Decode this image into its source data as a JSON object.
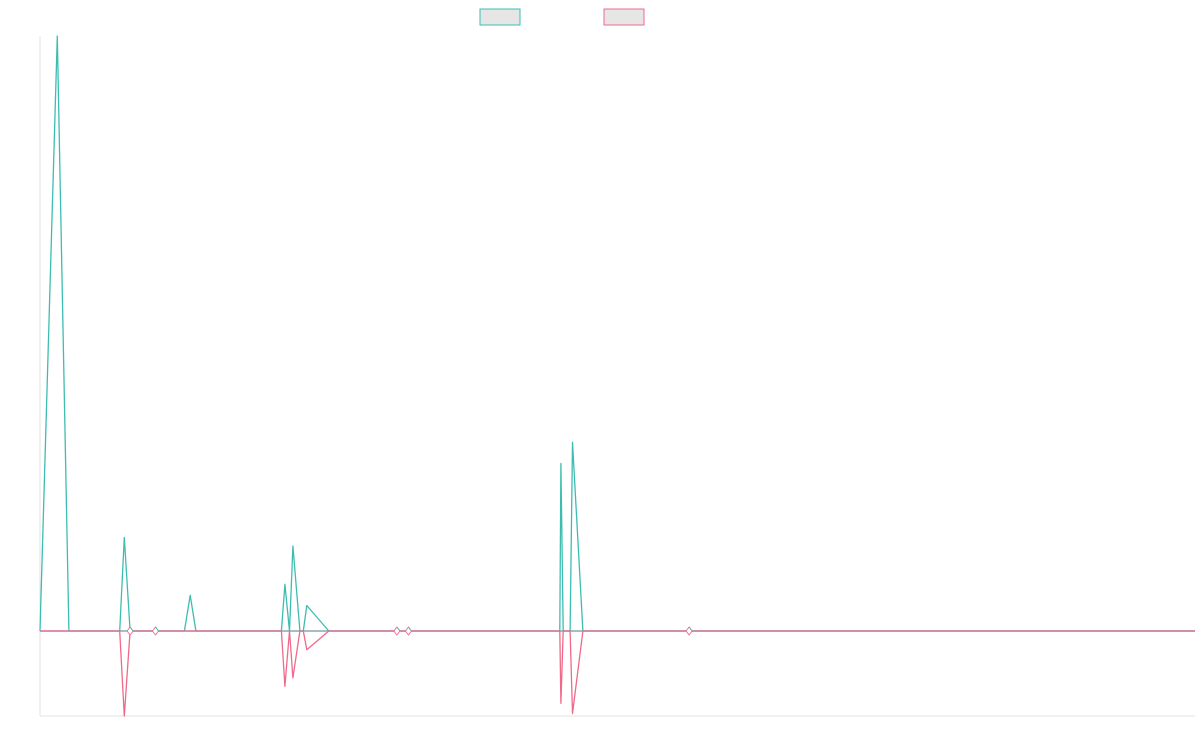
{
  "colors": {
    "series_a": "#3dbdb1",
    "series_b": "#ef6a8a",
    "baseline": "#8aa6b2",
    "axis": "#e3e3e3",
    "legend_fill": "#e6e6e6"
  },
  "chart_data": {
    "type": "line",
    "title": "",
    "xlabel": "",
    "ylabel": "",
    "legend": {
      "position": "top-center",
      "entries": [
        "",
        ""
      ]
    },
    "grid": false,
    "x": [
      0,
      1.5,
      2.5,
      3.3,
      5,
      6.9,
      7.3,
      7.8,
      10,
      12.5,
      13,
      13.5,
      20,
      20.9,
      21.2,
      21.6,
      21.9,
      22.5,
      22.8,
      23.1,
      25,
      27,
      29,
      30,
      30.9,
      31,
      31.9,
      32,
      32.4,
      34,
      37,
      40,
      41,
      44,
      45,
      45.1,
      45.3,
      45.9,
      46.1,
      47,
      48,
      50,
      55,
      60,
      70,
      100
    ],
    "xlim": [
      0,
      100
    ],
    "ylim": [
      -100,
      700
    ],
    "series": [
      {
        "values": [
          0,
          700,
          0,
          0,
          0,
          0,
          110,
          0,
          0,
          0,
          42,
          0,
          0,
          0,
          55,
          0,
          100,
          0,
          0,
          30,
          0,
          0,
          0,
          0,
          0,
          0,
          0,
          0,
          0,
          0,
          0,
          0,
          0,
          0,
          0,
          197,
          0,
          0,
          222,
          0,
          0,
          0,
          0,
          0,
          0,
          0
        ]
      },
      {
        "values": [
          0,
          0,
          0,
          0,
          0,
          0,
          -100,
          0,
          0,
          0,
          0,
          0,
          0,
          0,
          -65,
          0,
          -55,
          0,
          0,
          -22,
          0,
          0,
          0,
          0,
          0,
          0,
          0,
          0,
          0,
          0,
          0,
          0,
          0,
          0,
          0,
          -85,
          0,
          0,
          -97,
          0,
          0,
          0,
          0,
          0,
          0,
          0
        ]
      }
    ],
    "markers_x": [
      7.8,
      10,
      30.9,
      31.9,
      56.2
    ]
  }
}
